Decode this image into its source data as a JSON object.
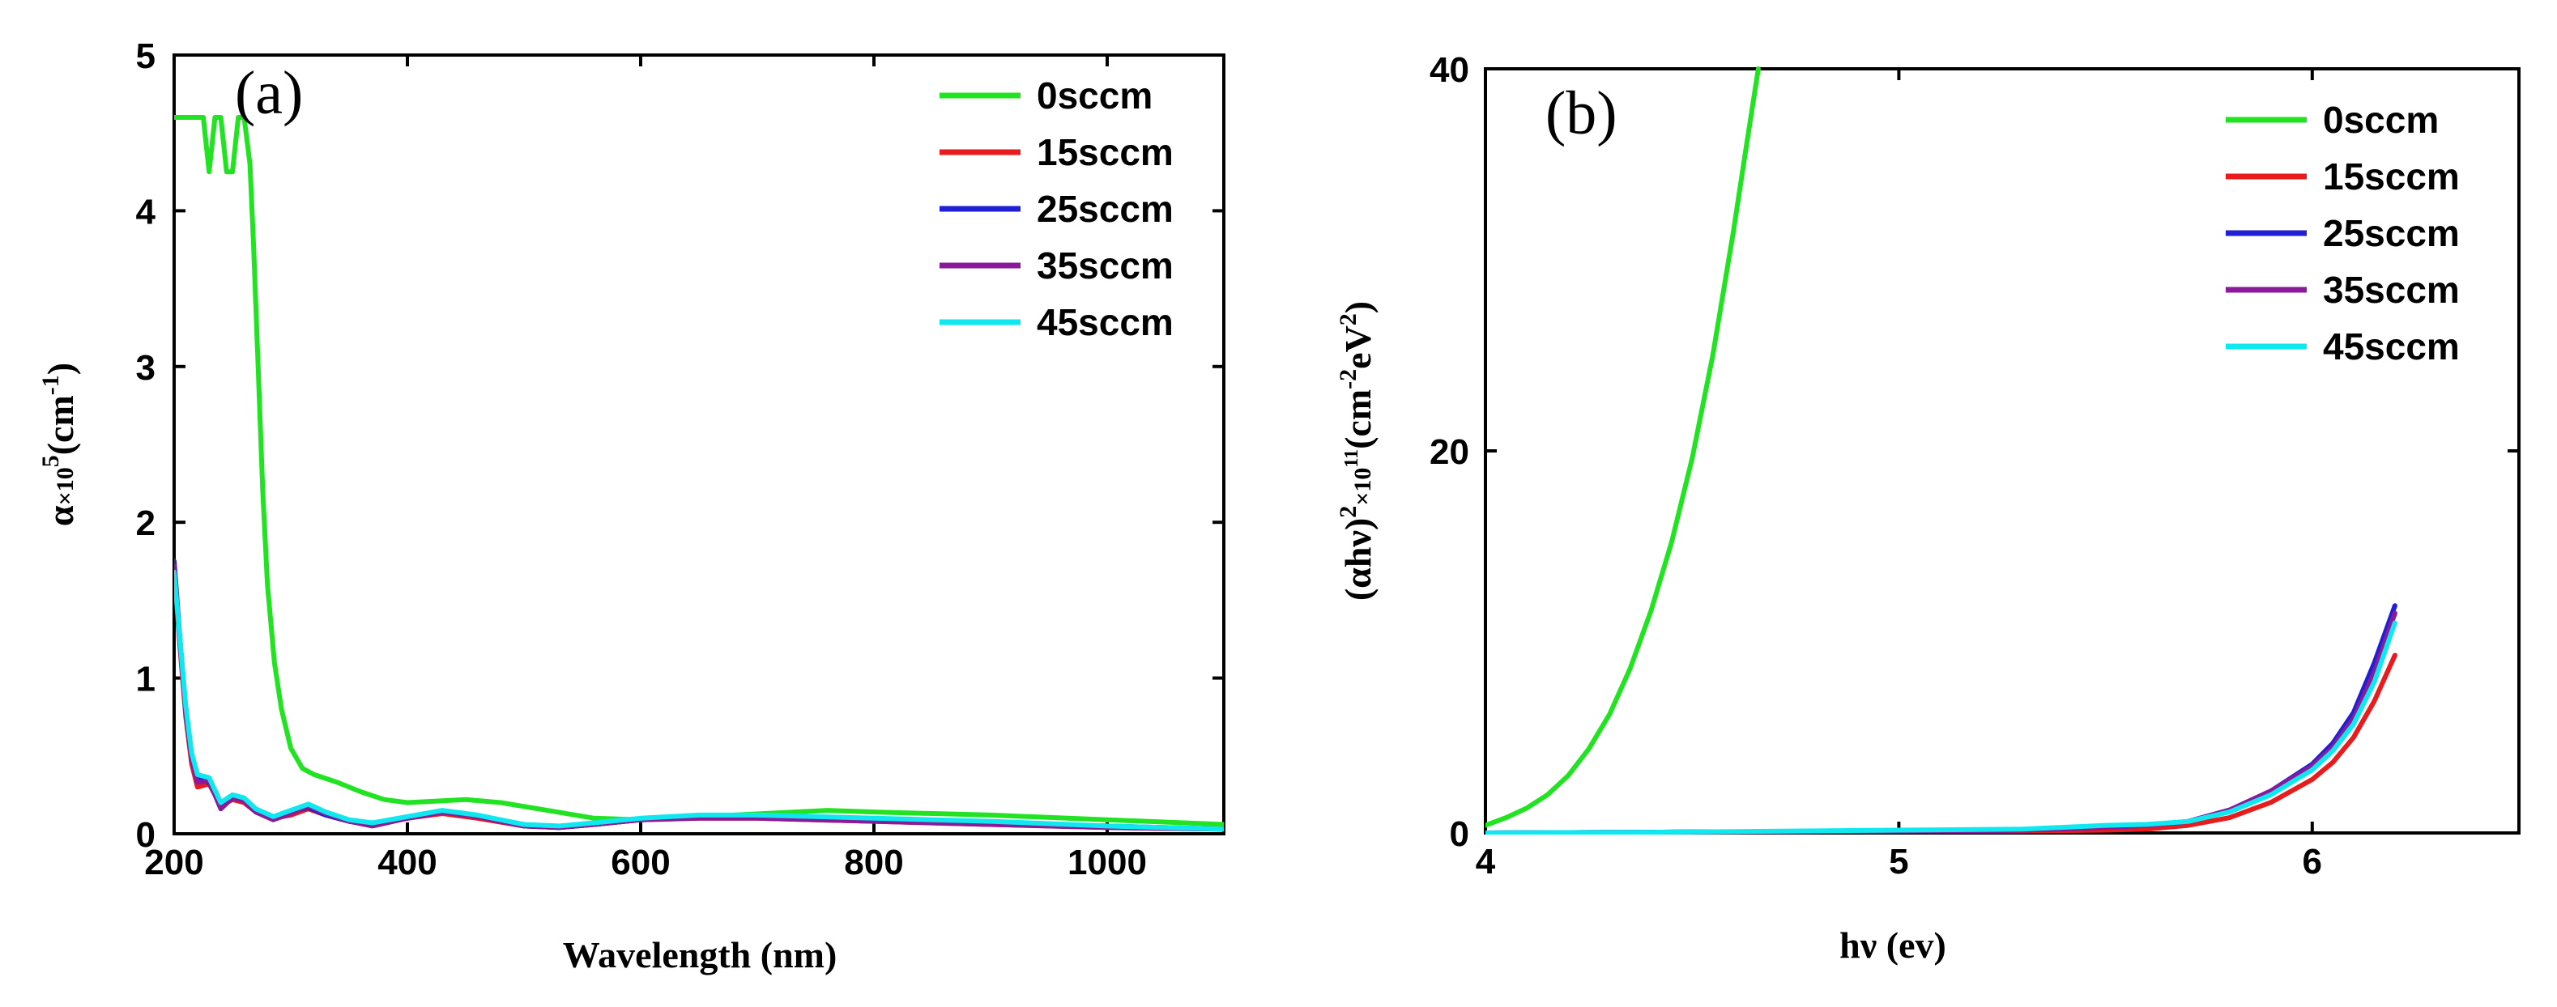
{
  "chart_data": [
    {
      "type": "line",
      "panel_label": "(a)",
      "xlabel": "Wavelength (nm)",
      "ylabel_main": "α",
      "ylabel_times": "×10",
      "ylabel_exp": "5",
      "ylabel_unit": "(cm",
      "ylabel_unit_exp": "-1",
      "ylabel_close": ")",
      "xlim": [
        200,
        1100
      ],
      "ylim": [
        0,
        5
      ],
      "xticks": [
        200,
        400,
        600,
        800,
        1000
      ],
      "yticks": [
        0,
        1,
        2,
        3,
        4,
        5
      ],
      "legend_position": "top-right",
      "series": [
        {
          "name": "0sccm",
          "color": "#22e322",
          "x": [
            200,
            220,
            225,
            230,
            235,
            240,
            245,
            250,
            255,
            260,
            265,
            268,
            272,
            276,
            280,
            286,
            292,
            300,
            310,
            320,
            340,
            360,
            380,
            400,
            450,
            480,
            520,
            560,
            600,
            680,
            760,
            800,
            900,
            1000,
            1100
          ],
          "y": [
            4.6,
            4.6,
            4.6,
            4.25,
            4.6,
            4.6,
            4.25,
            4.25,
            4.6,
            4.6,
            4.3,
            3.8,
            3.0,
            2.2,
            1.6,
            1.1,
            0.8,
            0.55,
            0.42,
            0.38,
            0.33,
            0.27,
            0.22,
            0.2,
            0.22,
            0.2,
            0.15,
            0.1,
            0.09,
            0.12,
            0.15,
            0.14,
            0.12,
            0.09,
            0.06
          ]
        },
        {
          "name": "15sccm",
          "color": "#e81c1c",
          "x": [
            200,
            205,
            210,
            215,
            220,
            230,
            240,
            250,
            260,
            270,
            285,
            300,
            315,
            330,
            350,
            370,
            400,
            430,
            460,
            500,
            530,
            560,
            600,
            650,
            700,
            750,
            800,
            900,
            1000,
            1100
          ],
          "y": [
            1.7,
            1.2,
            0.75,
            0.45,
            0.3,
            0.32,
            0.18,
            0.22,
            0.2,
            0.14,
            0.1,
            0.12,
            0.16,
            0.12,
            0.08,
            0.06,
            0.1,
            0.13,
            0.1,
            0.05,
            0.04,
            0.06,
            0.09,
            0.1,
            0.1,
            0.09,
            0.08,
            0.06,
            0.04,
            0.03
          ]
        },
        {
          "name": "25sccm",
          "color": "#1f1fd6",
          "x": [
            200,
            205,
            210,
            215,
            220,
            230,
            240,
            250,
            260,
            270,
            285,
            300,
            315,
            330,
            350,
            370,
            400,
            430,
            460,
            500,
            530,
            560,
            600,
            650,
            700,
            750,
            800,
            900,
            1000,
            1100
          ],
          "y": [
            1.75,
            1.25,
            0.8,
            0.5,
            0.35,
            0.33,
            0.18,
            0.24,
            0.22,
            0.15,
            0.1,
            0.14,
            0.17,
            0.12,
            0.08,
            0.06,
            0.1,
            0.14,
            0.11,
            0.05,
            0.04,
            0.06,
            0.09,
            0.11,
            0.11,
            0.1,
            0.09,
            0.07,
            0.05,
            0.03
          ]
        },
        {
          "name": "35sccm",
          "color": "#8a1a9a",
          "x": [
            200,
            205,
            210,
            215,
            220,
            230,
            240,
            250,
            260,
            270,
            285,
            300,
            315,
            330,
            350,
            370,
            400,
            430,
            460,
            500,
            530,
            560,
            600,
            650,
            700,
            750,
            800,
            900,
            1000,
            1100
          ],
          "y": [
            1.72,
            1.22,
            0.78,
            0.48,
            0.33,
            0.34,
            0.16,
            0.23,
            0.21,
            0.14,
            0.09,
            0.13,
            0.18,
            0.13,
            0.08,
            0.05,
            0.1,
            0.14,
            0.11,
            0.05,
            0.04,
            0.06,
            0.09,
            0.1,
            0.1,
            0.09,
            0.08,
            0.06,
            0.04,
            0.03
          ]
        },
        {
          "name": "45sccm",
          "color": "#10e8f0",
          "x": [
            200,
            205,
            210,
            215,
            220,
            230,
            240,
            250,
            260,
            270,
            285,
            300,
            315,
            330,
            350,
            370,
            400,
            430,
            460,
            500,
            530,
            560,
            600,
            650,
            700,
            750,
            800,
            900,
            1000,
            1100
          ],
          "y": [
            1.68,
            1.25,
            0.82,
            0.52,
            0.38,
            0.36,
            0.2,
            0.25,
            0.23,
            0.16,
            0.11,
            0.15,
            0.19,
            0.14,
            0.09,
            0.07,
            0.11,
            0.15,
            0.12,
            0.06,
            0.05,
            0.07,
            0.1,
            0.12,
            0.12,
            0.11,
            0.1,
            0.08,
            0.05,
            0.03
          ]
        }
      ]
    },
    {
      "type": "line",
      "panel_label": "(b)",
      "xlabel": "hν (ev)",
      "ylabel_main": "(αhν)",
      "ylabel_exp": "2",
      "ylabel_times": "×10",
      "ylabel_exp2": "11",
      "ylabel_unit": "(cm",
      "ylabel_unit_exp": "-2",
      "ylabel_unit2": "eV",
      "ylabel_unit2_exp": "2",
      "ylabel_close": ")",
      "xlim": [
        4,
        6.5
      ],
      "ylim": [
        0,
        40
      ],
      "xticks": [
        4,
        5,
        6
      ],
      "yticks": [
        0,
        20,
        40
      ],
      "legend_position": "top-right",
      "series": [
        {
          "name": "0sccm",
          "color": "#22e322",
          "x": [
            4.0,
            4.05,
            4.1,
            4.15,
            4.2,
            4.25,
            4.3,
            4.35,
            4.4,
            4.45,
            4.5,
            4.55,
            4.6,
            4.63,
            4.66
          ],
          "y": [
            0.4,
            0.8,
            1.3,
            2.0,
            3.0,
            4.4,
            6.2,
            8.6,
            11.6,
            15.2,
            19.6,
            25.0,
            31.5,
            35.8,
            40.0
          ]
        },
        {
          "name": "15sccm",
          "color": "#e81c1c",
          "x": [
            4.0,
            4.5,
            5.0,
            5.3,
            5.5,
            5.6,
            5.7,
            5.8,
            5.9,
            6.0,
            6.05,
            6.1,
            6.15,
            6.2
          ],
          "y": [
            0.0,
            0.05,
            0.1,
            0.1,
            0.15,
            0.2,
            0.4,
            0.8,
            1.6,
            2.8,
            3.7,
            5.0,
            6.9,
            9.3
          ]
        },
        {
          "name": "25sccm",
          "color": "#1f1fd6",
          "x": [
            4.0,
            4.5,
            5.0,
            5.3,
            5.5,
            5.6,
            5.7,
            5.8,
            5.9,
            6.0,
            6.05,
            6.1,
            6.15,
            6.2
          ],
          "y": [
            0.0,
            0.05,
            0.1,
            0.15,
            0.3,
            0.4,
            0.6,
            1.2,
            2.2,
            3.6,
            4.7,
            6.3,
            8.9,
            11.9
          ]
        },
        {
          "name": "35sccm",
          "color": "#8a1a9a",
          "x": [
            4.0,
            4.5,
            5.0,
            5.3,
            5.5,
            5.6,
            5.7,
            5.8,
            5.9,
            6.0,
            6.05,
            6.1,
            6.15,
            6.2
          ],
          "y": [
            0.0,
            0.05,
            0.1,
            0.15,
            0.3,
            0.4,
            0.6,
            1.2,
            2.2,
            3.5,
            4.5,
            6.0,
            8.4,
            11.5
          ]
        },
        {
          "name": "45sccm",
          "color": "#10e8f0",
          "x": [
            4.0,
            4.5,
            5.0,
            5.3,
            5.5,
            5.6,
            5.7,
            5.8,
            5.9,
            6.0,
            6.05,
            6.1,
            6.15,
            6.2
          ],
          "y": [
            0.0,
            0.05,
            0.15,
            0.2,
            0.4,
            0.45,
            0.6,
            1.1,
            2.0,
            3.3,
            4.3,
            5.7,
            7.9,
            11.0
          ]
        }
      ]
    }
  ]
}
